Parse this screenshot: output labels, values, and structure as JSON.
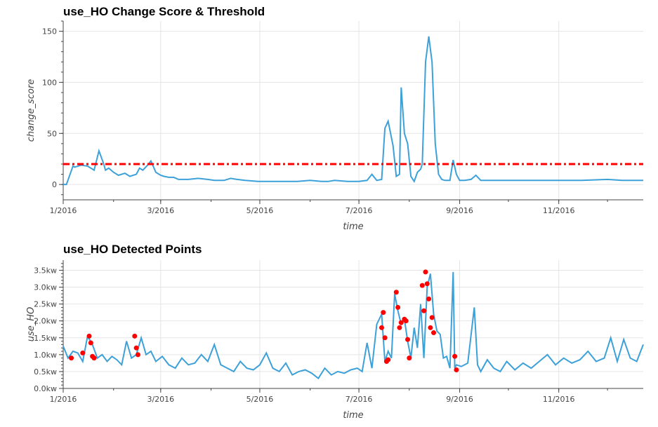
{
  "chart_data": [
    {
      "type": "line",
      "title": "use_HO Change Score & Threshold",
      "xlabel": "time",
      "ylabel": "change_score",
      "xlim": [
        "2016-01-01",
        "2016-12-23"
      ],
      "ylim": [
        -15,
        160
      ],
      "x_ticks": [
        "1/2016",
        "3/2016",
        "5/2016",
        "7/2016",
        "9/2016",
        "11/2016"
      ],
      "y_ticks": [
        0,
        50,
        100,
        150
      ],
      "grid": true,
      "colors": {
        "line": "#3da1d9",
        "threshold": "#ff0000"
      },
      "threshold": 20,
      "series": [
        {
          "x": [
            "2016-01-01",
            "2016-01-03",
            "2016-01-07",
            "2016-01-08",
            "2016-01-12",
            "2016-01-16",
            "2016-01-20",
            "2016-01-23",
            "2016-01-26",
            "2016-01-27",
            "2016-01-29",
            "2016-02-01",
            "2016-02-04",
            "2016-02-08",
            "2016-02-11",
            "2016-02-15",
            "2016-02-17",
            "2016-02-19",
            "2016-02-22",
            "2016-02-24",
            "2016-02-27",
            "2016-03-01",
            "2016-03-03",
            "2016-03-06",
            "2016-03-09",
            "2016-03-12",
            "2016-03-18",
            "2016-03-24",
            "2016-03-30",
            "2016-04-03",
            "2016-04-06",
            "2016-04-09",
            "2016-04-13",
            "2016-04-17",
            "2016-04-22",
            "2016-04-30",
            "2016-05-08",
            "2016-05-16",
            "2016-05-24",
            "2016-06-01",
            "2016-06-08",
            "2016-06-12",
            "2016-06-16",
            "2016-06-24",
            "2016-07-01",
            "2016-07-06",
            "2016-07-09",
            "2016-07-12",
            "2016-07-15",
            "2016-07-17",
            "2016-07-19",
            "2016-07-22",
            "2016-07-24",
            "2016-07-26",
            "2016-07-27",
            "2016-07-29",
            "2016-07-31",
            "2016-08-02",
            "2016-08-04",
            "2016-08-06",
            "2016-08-08",
            "2016-08-09",
            "2016-08-11",
            "2016-08-13",
            "2016-08-15",
            "2016-08-17",
            "2016-08-19",
            "2016-08-21",
            "2016-08-23",
            "2016-08-26",
            "2016-08-28",
            "2016-08-30",
            "2016-09-01",
            "2016-09-04",
            "2016-09-08",
            "2016-09-11",
            "2016-09-14",
            "2016-09-20",
            "2016-10-01",
            "2016-10-15",
            "2016-11-01",
            "2016-11-15",
            "2016-12-01",
            "2016-12-10",
            "2016-12-23"
          ],
          "y": [
            0,
            0,
            18,
            17,
            19,
            18,
            14,
            33,
            20,
            14,
            16,
            12,
            9,
            11,
            8,
            10,
            16,
            14,
            19,
            23,
            12,
            9,
            8,
            7,
            7,
            5,
            5,
            6,
            5,
            4,
            4,
            4,
            6,
            5,
            4,
            3,
            3,
            3,
            3,
            4,
            3,
            3,
            4,
            3,
            3,
            4,
            10,
            4,
            5,
            55,
            62,
            38,
            8,
            10,
            95,
            50,
            40,
            8,
            3,
            12,
            15,
            20,
            120,
            145,
            120,
            40,
            10,
            5,
            4,
            4,
            24,
            10,
            4,
            4,
            5,
            9,
            4,
            4,
            4,
            4,
            4,
            4,
            5,
            4,
            4
          ]
        }
      ]
    },
    {
      "type": "line",
      "title": "use_HO Detected Points",
      "xlabel": "time",
      "ylabel": "use_HO",
      "xlim": [
        "2016-01-01",
        "2016-12-23"
      ],
      "ylim": [
        0,
        3.8
      ],
      "x_ticks": [
        "1/2016",
        "3/2016",
        "5/2016",
        "7/2016",
        "9/2016",
        "11/2016"
      ],
      "y_ticks": [
        "0.0kw",
        "0.5kw",
        "1.0kw",
        "1.5kw",
        "2.0kw",
        "2.5kw",
        "3.0kw",
        "3.5kw"
      ],
      "y_tick_values": [
        0,
        0.5,
        1.0,
        1.5,
        2.0,
        2.5,
        3.0,
        3.5
      ],
      "grid": true,
      "colors": {
        "line": "#3da1d9",
        "points": "#ff0000"
      },
      "series": [
        {
          "x": [
            "2016-01-01",
            "2016-01-04",
            "2016-01-07",
            "2016-01-10",
            "2016-01-13",
            "2016-01-16",
            "2016-01-19",
            "2016-01-22",
            "2016-01-25",
            "2016-01-28",
            "2016-01-31",
            "2016-02-03",
            "2016-02-06",
            "2016-02-09",
            "2016-02-12",
            "2016-02-15",
            "2016-02-18",
            "2016-02-21",
            "2016-02-24",
            "2016-02-27",
            "2016-03-02",
            "2016-03-06",
            "2016-03-10",
            "2016-03-14",
            "2016-03-18",
            "2016-03-22",
            "2016-03-26",
            "2016-03-30",
            "2016-04-03",
            "2016-04-07",
            "2016-04-11",
            "2016-04-15",
            "2016-04-19",
            "2016-04-23",
            "2016-04-27",
            "2016-05-01",
            "2016-05-05",
            "2016-05-09",
            "2016-05-13",
            "2016-05-17",
            "2016-05-21",
            "2016-05-25",
            "2016-05-29",
            "2016-06-02",
            "2016-06-06",
            "2016-06-10",
            "2016-06-14",
            "2016-06-18",
            "2016-06-22",
            "2016-06-26",
            "2016-06-30",
            "2016-07-03",
            "2016-07-06",
            "2016-07-09",
            "2016-07-12",
            "2016-07-15",
            "2016-07-17",
            "2016-07-19",
            "2016-07-21",
            "2016-07-23",
            "2016-07-25",
            "2016-07-27",
            "2016-07-29",
            "2016-07-31",
            "2016-08-02",
            "2016-08-04",
            "2016-08-06",
            "2016-08-08",
            "2016-08-10",
            "2016-08-12",
            "2016-08-14",
            "2016-08-16",
            "2016-08-18",
            "2016-08-20",
            "2016-08-22",
            "2016-08-24",
            "2016-08-26",
            "2016-08-28",
            "2016-08-29",
            "2016-08-30",
            "2016-09-02",
            "2016-09-06",
            "2016-09-10",
            "2016-09-12",
            "2016-09-14",
            "2016-09-18",
            "2016-09-22",
            "2016-09-26",
            "2016-09-30",
            "2016-10-05",
            "2016-10-10",
            "2016-10-15",
            "2016-10-20",
            "2016-10-25",
            "2016-10-30",
            "2016-11-04",
            "2016-11-09",
            "2016-11-14",
            "2016-11-19",
            "2016-11-24",
            "2016-11-29",
            "2016-12-03",
            "2016-12-07",
            "2016-12-11",
            "2016-12-15",
            "2016-12-19",
            "2016-12-23"
          ],
          "y": [
            1.25,
            0.9,
            1.1,
            1.05,
            0.8,
            1.55,
            1.3,
            0.9,
            1.0,
            0.8,
            0.95,
            0.85,
            0.7,
            1.4,
            0.9,
            1.0,
            1.5,
            1.0,
            1.1,
            0.8,
            0.95,
            0.7,
            0.6,
            0.9,
            0.7,
            0.75,
            1.0,
            0.8,
            1.3,
            0.7,
            0.6,
            0.5,
            0.8,
            0.6,
            0.55,
            0.7,
            1.05,
            0.6,
            0.5,
            0.75,
            0.4,
            0.5,
            0.55,
            0.45,
            0.3,
            0.6,
            0.4,
            0.5,
            0.45,
            0.55,
            0.6,
            0.5,
            1.35,
            0.6,
            1.9,
            2.2,
            0.8,
            1.1,
            0.9,
            2.8,
            2.3,
            1.9,
            2.05,
            1.4,
            0.9,
            1.8,
            1.2,
            2.5,
            0.9,
            3.0,
            3.4,
            2.2,
            1.7,
            1.6,
            0.9,
            0.95,
            0.6,
            3.45,
            0.6,
            0.7,
            0.65,
            0.75,
            2.4,
            0.7,
            0.5,
            0.85,
            0.6,
            0.5,
            0.8,
            0.55,
            0.75,
            0.6,
            0.8,
            1.0,
            0.7,
            0.9,
            0.75,
            0.85,
            1.1,
            0.8,
            0.9,
            1.5,
            0.8,
            1.45,
            0.9,
            0.8,
            1.3
          ]
        }
      ],
      "points": {
        "x": [
          "2016-01-06",
          "2016-01-13",
          "2016-01-17",
          "2016-01-18",
          "2016-01-19",
          "2016-01-20",
          "2016-02-14",
          "2016-02-15",
          "2016-02-16",
          "2016-07-15",
          "2016-07-16",
          "2016-07-17",
          "2016-07-18",
          "2016-07-19",
          "2016-07-24",
          "2016-07-25",
          "2016-07-26",
          "2016-07-27",
          "2016-07-29",
          "2016-07-30",
          "2016-07-31",
          "2016-08-01",
          "2016-08-09",
          "2016-08-10",
          "2016-08-11",
          "2016-08-12",
          "2016-08-13",
          "2016-08-14",
          "2016-08-15",
          "2016-08-16",
          "2016-08-29",
          "2016-08-30"
        ],
        "y": [
          0.9,
          1.05,
          1.55,
          1.35,
          0.95,
          0.9,
          1.55,
          1.2,
          1.0,
          1.8,
          2.25,
          1.5,
          0.8,
          0.85,
          2.85,
          2.4,
          1.8,
          1.95,
          2.05,
          2.0,
          1.45,
          0.9,
          3.05,
          2.3,
          3.45,
          3.1,
          2.65,
          1.8,
          2.1,
          1.65,
          0.95,
          0.55
        ]
      }
    }
  ]
}
